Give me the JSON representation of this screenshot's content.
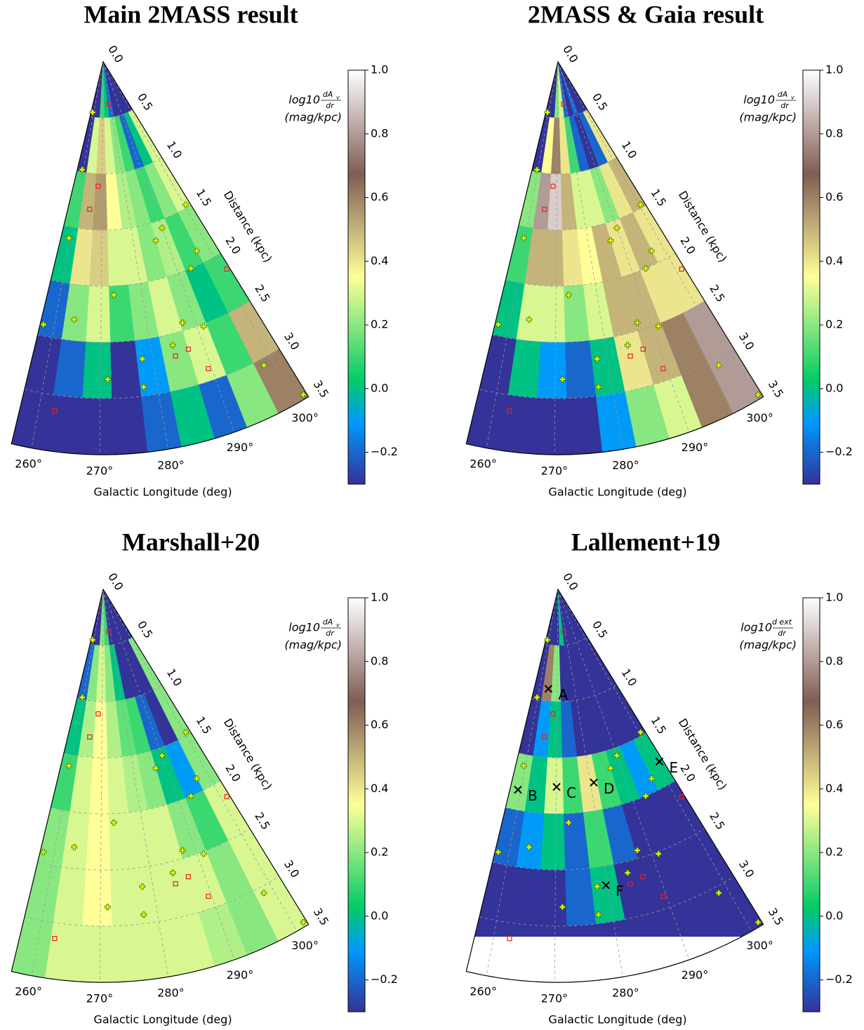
{
  "chart_data": [
    {
      "type": "polar-heatmap",
      "title": "Main 2MASS result",
      "colormap": "terrain",
      "x_label": "Galactic Longitude (deg)",
      "r_label": "Distance (kpc)",
      "colorbar_label": {
        "prefix": "log10",
        "numerator": "dA",
        "numerator_sub": "v",
        "denominator": "dr",
        "unit": "(mag/kpc)"
      },
      "thetalim": [
        257,
        302
      ],
      "rlim": [
        0,
        3.5
      ],
      "clim": [
        -0.3,
        1.0
      ],
      "thetaticks": [
        {
          "value": 260,
          "label": "260°"
        },
        {
          "value": 270,
          "label": "270°"
        },
        {
          "value": 280,
          "label": "280°"
        },
        {
          "value": 290,
          "label": "290°"
        },
        {
          "value": 300,
          "label": "300°"
        }
      ],
      "rticks": [
        {
          "value": 0,
          "label": "0.0"
        },
        0.5,
        {
          "value": 1,
          "label": "1.0"
        },
        1.5,
        {
          "value": 2,
          "label": "2.0"
        },
        2.5,
        {
          "value": 3,
          "label": "3.0"
        },
        3.5
      ],
      "cticks": [
        {
          "value": -0.2,
          "label": "−0.2"
        },
        {
          "value": 0,
          "label": "0.0"
        },
        0.2,
        0.4,
        0.6,
        0.8,
        {
          "value": 1,
          "label": "1.0"
        }
      ],
      "lon_edges": [
        257,
        262,
        267,
        272,
        277,
        282,
        287,
        292,
        297,
        302
      ],
      "distance_edges": [
        0,
        0.5,
        1,
        1.5,
        2,
        2.5,
        3,
        3.5
      ],
      "z": [
        [
          -0.3,
          -0.3,
          0.1,
          0.0,
          -0.2,
          -0.3,
          -0.3,
          -0.3,
          -0.3
        ],
        [
          -0.3,
          0.3,
          0.45,
          0.3,
          0.2,
          0.1,
          -0.2,
          0.0,
          0.3
        ],
        [
          0.1,
          0.5,
          0.55,
          0.35,
          0.25,
          0.2,
          0.1,
          0.2,
          0.3
        ],
        [
          0.0,
          0.4,
          0.45,
          0.3,
          0.3,
          0.2,
          0.25,
          0.1,
          0.2
        ],
        [
          -0.2,
          0.2,
          0.3,
          0.1,
          0.2,
          0.3,
          0.2,
          0.0,
          0.1
        ],
        [
          -0.3,
          -0.2,
          0.0,
          -0.3,
          -0.1,
          0.2,
          0.3,
          0.1,
          0.5
        ],
        [
          -0.3,
          -0.3,
          -0.3,
          -0.3,
          -0.2,
          0.0,
          -0.2,
          0.2,
          0.6
        ]
      ],
      "plus_sources": {
        "color": "#e6f200",
        "lon": [
          258.7,
          259.5,
          259.5,
          264.1,
          257.7,
          273.1,
          286.9,
          290.0,
          300.5,
          296.8,
          293.5,
          287.4,
          291.3,
          284.3,
          278.0,
          271.3,
          277.6,
          298.4,
          301.5
        ],
        "distance": [
          0.46,
          0.98,
          1.6,
          2.31,
          2.4,
          2.08,
          1.66,
          1.57,
          1.47,
          1.88,
          2.0,
          2.43,
          2.52,
          2.6,
          2.67,
          2.83,
          2.92,
          3.06,
          3.46
        ]
      },
      "square_sources": {
        "color": "#e8221e",
        "lon": [
          278.1,
          268.2,
          265.3,
          301.3,
          289.4,
          262.6,
          284.3,
          287.0
        ],
        "distance": [
          0.38,
          1.11,
          1.32,
          2.15,
          2.89,
          3.14,
          2.7,
          2.67
        ]
      }
    },
    {
      "type": "polar-heatmap",
      "title": "2MASS & Gaia result",
      "colormap": "terrain",
      "x_label": "Galactic Longitude (deg)",
      "r_label": "Distance (kpc)",
      "colorbar_label": {
        "prefix": "log10",
        "numerator": "dA",
        "numerator_sub": "v",
        "denominator": "dr",
        "unit": "(mag/kpc)"
      },
      "thetalim": [
        257,
        302
      ],
      "rlim": [
        0,
        3.5
      ],
      "clim": [
        -0.3,
        1.0
      ],
      "thetaticks": [
        {
          "value": 260,
          "label": "260°"
        },
        {
          "value": 270,
          "label": "270°"
        },
        {
          "value": 280,
          "label": "280°"
        },
        {
          "value": 290,
          "label": "290°"
        },
        {
          "value": 300,
          "label": "300°"
        }
      ],
      "rticks": [
        {
          "value": 0,
          "label": "0.0"
        },
        0.5,
        {
          "value": 1,
          "label": "1.0"
        },
        1.5,
        {
          "value": 2,
          "label": "2.0"
        },
        2.5,
        {
          "value": 3,
          "label": "3.0"
        },
        3.5
      ],
      "cticks": [
        {
          "value": -0.2,
          "label": "−0.2"
        },
        {
          "value": 0,
          "label": "0.0"
        },
        0.2,
        0.4,
        0.6,
        0.8,
        {
          "value": 1,
          "label": "1.0"
        }
      ],
      "lon_edges": [
        257,
        262,
        267,
        272,
        277,
        282,
        287,
        292,
        297,
        302
      ],
      "distance_edges": [
        0,
        0.5,
        1,
        1.5,
        2,
        2.5,
        3,
        3.5
      ],
      "z": [
        [
          -0.3,
          -0.3,
          0.2,
          0.3,
          -0.2,
          -0.3,
          -0.2,
          -0.3,
          -0.3
        ],
        [
          -0.3,
          0.35,
          0.6,
          0.4,
          0.1,
          -0.2,
          -0.3,
          -0.2,
          0.4
        ],
        [
          0.2,
          0.8,
          0.9,
          0.5,
          0.3,
          0.3,
          0.2,
          0.4,
          0.5
        ],
        [
          0.1,
          0.5,
          0.5,
          0.4,
          0.35,
          0.5,
          0.4,
          0.5,
          0.4
        ],
        [
          0.0,
          0.3,
          0.3,
          0.2,
          0.3,
          0.5,
          0.5,
          0.4,
          0.4
        ],
        [
          -0.3,
          0.0,
          -0.1,
          -0.2,
          0.0,
          0.4,
          0.5,
          0.6,
          0.8
        ],
        [
          -0.3,
          -0.3,
          -0.3,
          -0.3,
          -0.1,
          0.2,
          0.3,
          0.6,
          0.8
        ]
      ],
      "plus_sources": {
        "color": "#e6f200",
        "lon": [
          258.7,
          259.5,
          259.5,
          264.1,
          257.7,
          273.1,
          286.9,
          290.0,
          300.5,
          296.8,
          293.5,
          287.4,
          291.3,
          284.3,
          278.0,
          271.3,
          277.6,
          298.4,
          301.5
        ],
        "distance": [
          0.46,
          0.98,
          1.6,
          2.31,
          2.4,
          2.08,
          1.66,
          1.57,
          1.47,
          1.88,
          2.0,
          2.43,
          2.52,
          2.6,
          2.67,
          2.83,
          2.92,
          3.06,
          3.46
        ]
      },
      "square_sources": {
        "color": "#e8221e",
        "lon": [
          278.1,
          268.2,
          265.3,
          301.3,
          289.4,
          262.6,
          284.3,
          287.0
        ],
        "distance": [
          0.38,
          1.11,
          1.32,
          2.15,
          2.89,
          3.14,
          2.7,
          2.67
        ]
      }
    },
    {
      "type": "polar-heatmap",
      "title": "Marshall+20",
      "colormap": "terrain",
      "x_label": "Galactic Longitude (deg)",
      "r_label": "Distance (kpc)",
      "colorbar_label": {
        "prefix": "log10",
        "numerator": "dA",
        "numerator_sub": "v",
        "denominator": "dr",
        "unit": "(mag/kpc)"
      },
      "thetalim": [
        257,
        302
      ],
      "rlim": [
        0,
        3.5
      ],
      "clim": [
        -0.3,
        1.0
      ],
      "thetaticks": [
        {
          "value": 260,
          "label": "260°"
        },
        {
          "value": 270,
          "label": "270°"
        },
        {
          "value": 280,
          "label": "280°"
        },
        {
          "value": 290,
          "label": "290°"
        },
        {
          "value": 300,
          "label": "300°"
        }
      ],
      "rticks": [
        {
          "value": 0,
          "label": "0.0"
        },
        0.5,
        {
          "value": 1,
          "label": "1.0"
        },
        1.5,
        {
          "value": 2,
          "label": "2.0"
        },
        2.5,
        {
          "value": 3,
          "label": "3.0"
        },
        3.5
      ],
      "cticks": [
        {
          "value": -0.2,
          "label": "−0.2"
        },
        {
          "value": 0,
          "label": "0.0"
        },
        0.2,
        0.4,
        0.6,
        0.8,
        {
          "value": 1,
          "label": "1.0"
        }
      ],
      "lon_edges": [
        257,
        262,
        267,
        272,
        277,
        282,
        287,
        292,
        297,
        302
      ],
      "distance_edges": [
        0,
        0.5,
        1,
        1.5,
        2,
        2.5,
        3,
        3.5
      ],
      "z": [
        [
          -0.3,
          -0.3,
          0.2,
          0.1,
          -0.3,
          -0.3,
          -0.3,
          -0.3,
          -0.3
        ],
        [
          -0.2,
          0.2,
          0.3,
          0.2,
          0.0,
          -0.3,
          -0.3,
          -0.3,
          0.2
        ],
        [
          0.0,
          0.25,
          0.35,
          0.25,
          0.15,
          0.1,
          -0.2,
          -0.3,
          0.2
        ],
        [
          0.1,
          0.3,
          0.35,
          0.3,
          0.25,
          0.2,
          0.0,
          -0.1,
          0.2
        ],
        [
          0.2,
          0.3,
          0.35,
          0.3,
          0.3,
          0.3,
          0.2,
          0.1,
          0.3
        ],
        [
          0.2,
          0.3,
          0.35,
          0.3,
          0.3,
          0.3,
          0.3,
          0.2,
          0.3
        ],
        [
          0.2,
          0.3,
          0.3,
          0.3,
          0.3,
          0.3,
          0.25,
          0.2,
          0.3
        ]
      ],
      "plus_sources": {
        "color": "#e6f200",
        "lon": [
          258.7,
          259.5,
          259.5,
          264.1,
          257.7,
          273.1,
          286.9,
          290.0,
          300.5,
          296.8,
          293.5,
          287.4,
          291.3,
          284.3,
          278.0,
          271.3,
          277.6,
          298.4,
          301.5
        ],
        "distance": [
          0.46,
          0.98,
          1.6,
          2.31,
          2.4,
          2.08,
          1.66,
          1.57,
          1.47,
          1.88,
          2.0,
          2.43,
          2.52,
          2.6,
          2.67,
          2.83,
          2.92,
          3.06,
          3.46
        ]
      },
      "square_sources": {
        "color": "#e8221e",
        "lon": [
          278.1,
          268.2,
          265.3,
          301.3,
          289.4,
          262.6,
          284.3,
          287.0
        ],
        "distance": [
          0.38,
          1.11,
          1.32,
          2.15,
          2.89,
          3.14,
          2.7,
          2.67
        ]
      }
    },
    {
      "type": "polar-heatmap",
      "title": "Lallement+19",
      "colormap": "terrain",
      "x_label": "Galactic Longitude (deg)",
      "r_label": "Distance (kpc)",
      "colorbar_label": {
        "prefix": "log10",
        "numerator": "d ext",
        "denominator": "dr",
        "unit": "(mag/kpc)"
      },
      "thetalim": [
        257,
        302
      ],
      "rlim": [
        0,
        3.5
      ],
      "clim": [
        -0.3,
        1.0
      ],
      "thetaticks": [
        {
          "value": 260,
          "label": "260°"
        },
        {
          "value": 270,
          "label": "270°"
        },
        {
          "value": 280,
          "label": "280°"
        },
        {
          "value": 290,
          "label": "290°"
        },
        {
          "value": 300,
          "label": "300°"
        }
      ],
      "rticks": [
        {
          "value": 0,
          "label": "0.0"
        },
        0.5,
        {
          "value": 1,
          "label": "1.0"
        },
        1.5,
        {
          "value": 2,
          "label": "2.0"
        },
        2.5,
        {
          "value": 3,
          "label": "3.0"
        },
        3.5
      ],
      "cticks": [
        {
          "value": -0.2,
          "label": "−0.2"
        },
        {
          "value": 0,
          "label": "0.0"
        },
        0.2,
        0.4,
        0.6,
        0.8,
        {
          "value": 1,
          "label": "1.0"
        }
      ],
      "lon_edges": [
        257,
        262,
        267,
        272,
        277,
        282,
        287,
        292,
        297,
        302
      ],
      "distance_edges": [
        0,
        0.5,
        1,
        1.5,
        2,
        2.5,
        3,
        3.5
      ],
      "z": [
        [
          -0.3,
          -0.3,
          -0.3,
          0.0,
          -0.3,
          -0.3,
          -0.3,
          -0.3,
          -0.3
        ],
        [
          -0.3,
          0.6,
          0.2,
          -0.3,
          -0.3,
          -0.3,
          -0.3,
          -0.3,
          -0.3
        ],
        [
          -0.3,
          -0.1,
          0.0,
          -0.2,
          -0.3,
          -0.3,
          -0.3,
          -0.3,
          -0.3
        ],
        [
          0.2,
          0.0,
          0.3,
          0.1,
          0.4,
          0.1,
          0.0,
          -0.1,
          0.0
        ],
        [
          -0.2,
          -0.1,
          0.0,
          -0.2,
          0.1,
          -0.2,
          -0.3,
          -0.3,
          -0.3
        ],
        [
          -0.3,
          -0.3,
          -0.3,
          -0.2,
          0.0,
          -0.3,
          -0.3,
          -0.3,
          -0.3
        ],
        [
          -0.3,
          -0.3,
          -0.3,
          -0.3,
          -0.3,
          -0.3,
          -0.3,
          -0.3,
          -0.3
        ]
      ],
      "annotations": [
        {
          "text": "A",
          "lon": 265,
          "distance": 0.89
        },
        {
          "text": "B",
          "lon": 259.2,
          "distance": 1.82
        },
        {
          "text": "C",
          "lon": 270.1,
          "distance": 1.76
        },
        {
          "text": "D",
          "lon": 281,
          "distance": 1.75
        },
        {
          "text": "E",
          "lon": 301,
          "distance": 1.78
        },
        {
          "text": "F",
          "lon": 279.7,
          "distance": 2.67
        }
      ],
      "plus_sources": {
        "color": "#e6f200",
        "lon": [
          258.7,
          259.5,
          259.5,
          264.1,
          257.7,
          273.1,
          286.9,
          290.0,
          300.5,
          296.8,
          293.5,
          287.4,
          291.3,
          284.3,
          278.0,
          271.3,
          277.6,
          298.4,
          301.5
        ],
        "distance": [
          0.46,
          0.98,
          1.6,
          2.31,
          2.4,
          2.08,
          1.66,
          1.57,
          1.47,
          1.88,
          2.0,
          2.43,
          2.52,
          2.6,
          2.67,
          2.83,
          2.92,
          3.06,
          3.46
        ]
      },
      "square_sources": {
        "color": "#e8221e",
        "lon": [
          278.1,
          268.2,
          265.3,
          301.3,
          289.4,
          262.6,
          284.3,
          287.0
        ],
        "distance": [
          0.38,
          1.11,
          1.32,
          2.15,
          2.89,
          3.14,
          2.7,
          2.67
        ]
      }
    }
  ]
}
